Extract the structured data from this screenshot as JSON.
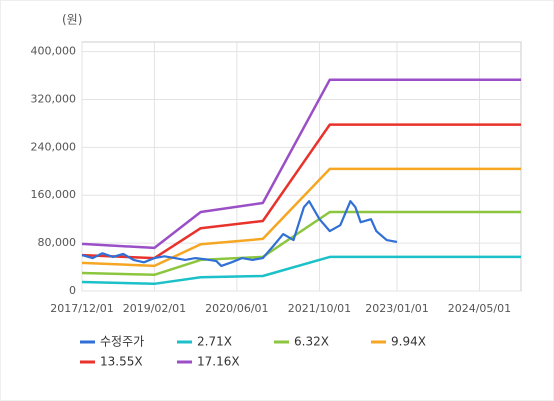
{
  "chart_data": {
    "type": "line",
    "unit_label": "(원)",
    "xlim": [
      "2017/12/01",
      "2025/01/01"
    ],
    "xticks": [
      "2017/12/01",
      "2019/02/01",
      "2020/06/01",
      "2021/10/01",
      "2023/01/01",
      "2024/05/01"
    ],
    "ylim": [
      0,
      416000
    ],
    "yticks": [
      0,
      {
        "value": 80000,
        "label": "80,000"
      },
      {
        "value": 160000,
        "label": "160,000"
      },
      {
        "value": 240000,
        "label": "240,000"
      },
      {
        "value": 320000,
        "label": "320,000"
      },
      {
        "value": 400000,
        "label": "400,000"
      }
    ],
    "grid": true,
    "series": [
      {
        "name": "수정주가",
        "color": "#2f6fd6",
        "x": [
          "2017/12/01",
          "2018/02/01",
          "2018/04/01",
          "2018/06/01",
          "2018/08/01",
          "2018/10/01",
          "2018/12/01",
          "2019/02/01",
          "2019/04/01",
          "2019/06/01",
          "2019/08/01",
          "2019/10/01",
          "2019/12/01",
          "2020/02/01",
          "2020/03/01",
          "2020/05/01",
          "2020/07/01",
          "2020/09/01",
          "2020/11/01",
          "2021/01/01",
          "2021/03/01",
          "2021/05/01",
          "2021/07/01",
          "2021/08/01",
          "2021/10/01",
          "2021/12/01",
          "2022/02/01",
          "2022/04/01",
          "2022/05/01",
          "2022/06/01",
          "2022/08/01",
          "2022/09/01",
          "2022/11/01",
          "2023/01/01"
        ],
        "values": [
          60000,
          55000,
          63000,
          57000,
          62000,
          52000,
          48000,
          55000,
          58000,
          55000,
          52000,
          55000,
          53000,
          50000,
          42000,
          48000,
          55000,
          52000,
          55000,
          75000,
          95000,
          85000,
          140000,
          150000,
          120000,
          100000,
          110000,
          150000,
          140000,
          115000,
          120000,
          100000,
          85000,
          82000
        ]
      },
      {
        "name": "2.71X",
        "color": "#1cc0c8",
        "x": [
          "2017/12/01",
          "2019/02/01",
          "2019/11/01",
          "2020/11/01",
          "2021/12/01",
          "2025/01/01"
        ],
        "values": [
          15000,
          12000,
          23000,
          25000,
          57000,
          57000
        ]
      },
      {
        "name": "6.32X",
        "color": "#8cc63f",
        "x": [
          "2017/12/01",
          "2019/02/01",
          "2019/11/01",
          "2020/11/01",
          "2021/12/01",
          "2025/01/01"
        ],
        "values": [
          30000,
          27000,
          52000,
          57000,
          132000,
          132000
        ]
      },
      {
        "name": "9.94X",
        "color": "#f5a623",
        "x": [
          "2017/12/01",
          "2019/02/01",
          "2019/11/01",
          "2020/11/01",
          "2021/12/01",
          "2025/01/01"
        ],
        "values": [
          47000,
          42000,
          78000,
          87000,
          204000,
          204000
        ]
      },
      {
        "name": "13.55X",
        "color": "#e8322b",
        "x": [
          "2017/12/01",
          "2019/02/01",
          "2019/11/01",
          "2020/11/01",
          "2021/12/01",
          "2025/01/01"
        ],
        "values": [
          60000,
          55000,
          105000,
          117000,
          278000,
          278000
        ]
      },
      {
        "name": "17.16X",
        "color": "#9b4fc7",
        "x": [
          "2017/12/01",
          "2019/02/01",
          "2019/11/01",
          "2020/11/01",
          "2021/12/01",
          "2025/01/01"
        ],
        "values": [
          78700,
          72000,
          132000,
          147000,
          353000,
          353000
        ]
      }
    ]
  }
}
